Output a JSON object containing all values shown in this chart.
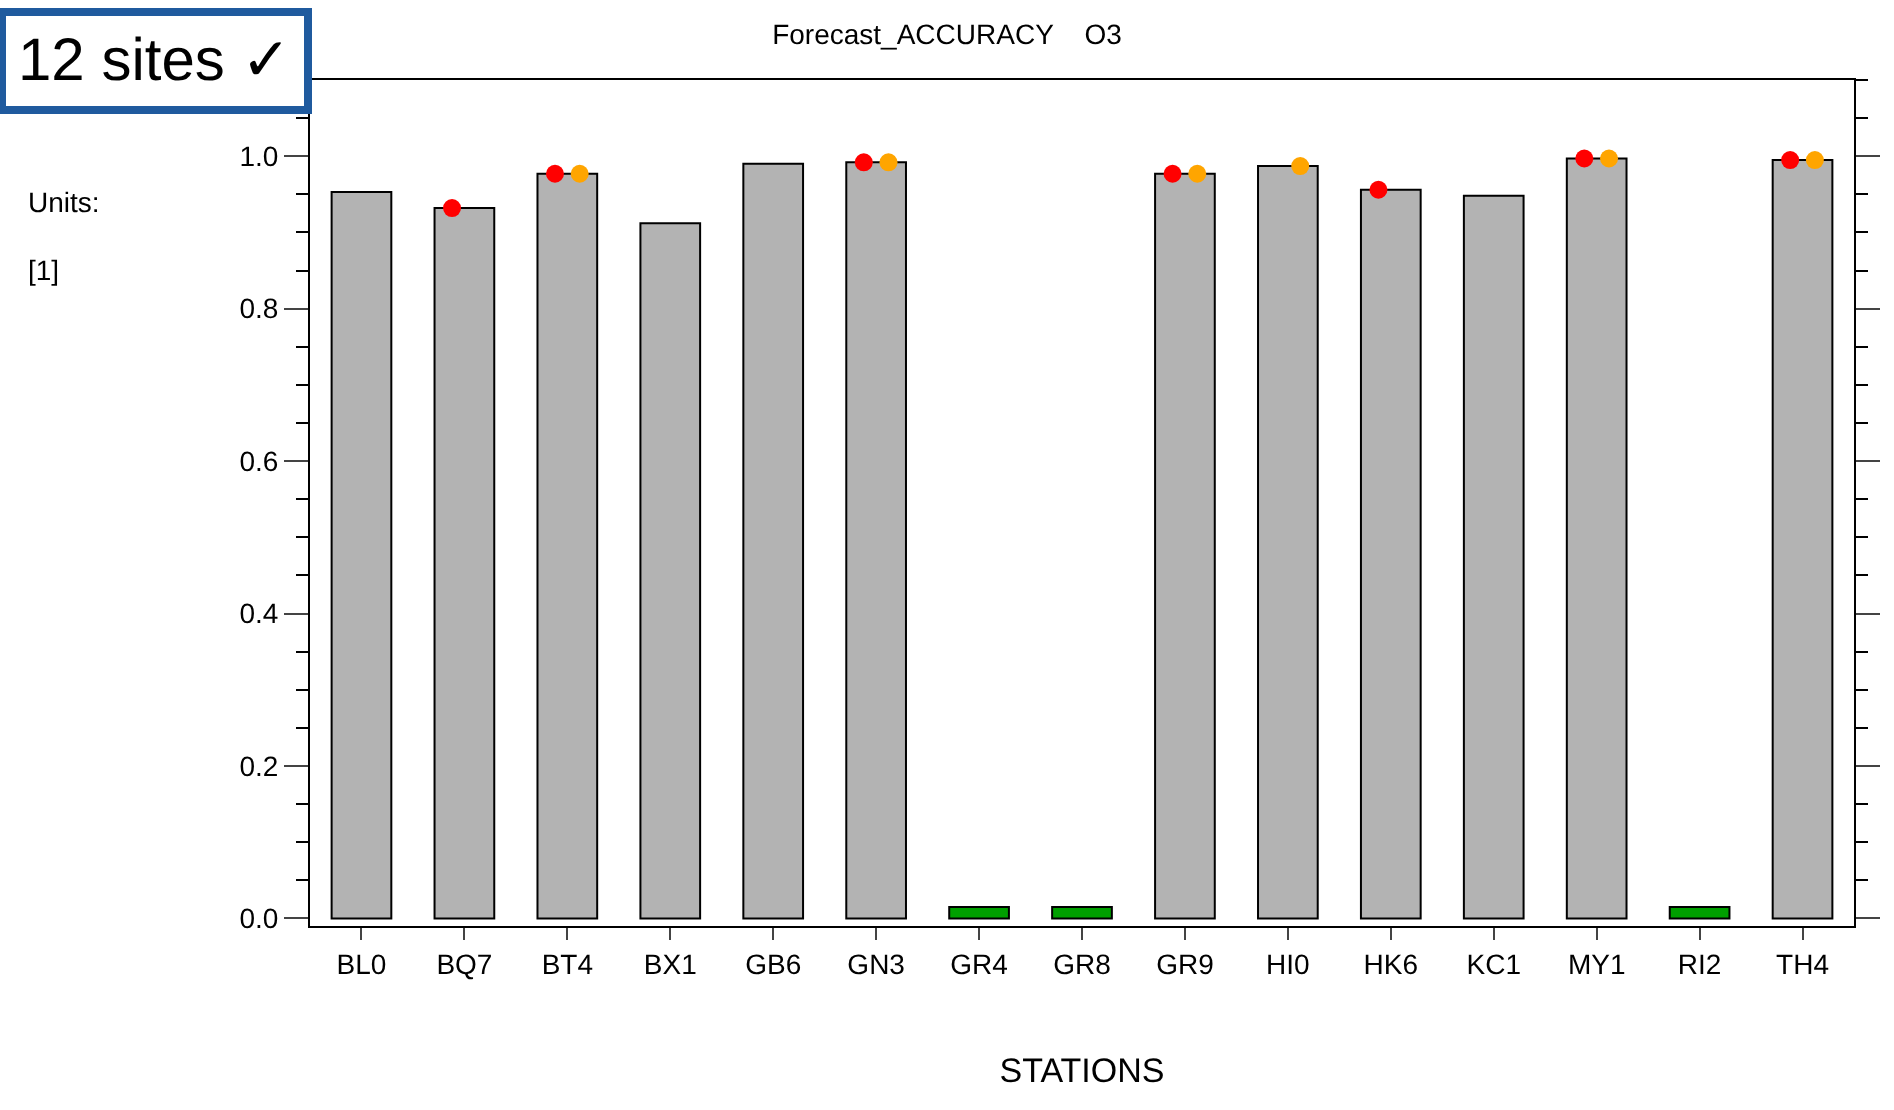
{
  "chart_data": {
    "type": "bar",
    "title": "Forecast_ACCURACY    O3",
    "xlabel": "STATIONS",
    "annotations": [
      "12 sites ✓",
      "Units:",
      "[1]"
    ],
    "categories": [
      "BL0",
      "BQ7",
      "BT4",
      "BX1",
      "GB6",
      "GN3",
      "GR4",
      "GR8",
      "GR9",
      "HI0",
      "HK6",
      "KC1",
      "MY1",
      "RI2",
      "TH4"
    ],
    "series": [
      {
        "colors": [
          "#b3b3b3",
          "#b3b3b3",
          "#b3b3b3",
          "#b3b3b3",
          "#b3b3b3",
          "#b3b3b3",
          "#00a000",
          "#00a000",
          "#b3b3b3",
          "#b3b3b3",
          "#b3b3b3",
          "#b3b3b3",
          "#b3b3b3",
          "#00a000",
          "#b3b3b3"
        ],
        "values": [
          0.953,
          0.932,
          0.977,
          0.912,
          0.99,
          0.992,
          0.015,
          0.015,
          0.977,
          0.987,
          0.956,
          0.948,
          0.997,
          0.015,
          0.995
        ]
      },
      {
        "type": "scatter",
        "color": "#ff0000",
        "values": [
          null,
          0.932,
          0.977,
          null,
          null,
          0.992,
          null,
          null,
          0.977,
          null,
          0.956,
          null,
          0.997,
          null,
          0.995
        ]
      },
      {
        "type": "scatter",
        "color": "#ffa500",
        "values": [
          null,
          null,
          0.977,
          null,
          null,
          0.992,
          null,
          null,
          0.977,
          0.987,
          null,
          null,
          0.997,
          null,
          0.995
        ]
      }
    ],
    "ylim": [
      -0.01,
      1.1
    ],
    "yticks": [
      {
        "value": 0,
        "label": "0.0"
      },
      0.2,
      0.4,
      0.6,
      0.8,
      {
        "value": 1,
        "label": "1.0"
      }
    ],
    "grid": false,
    "marker": "circle"
  }
}
